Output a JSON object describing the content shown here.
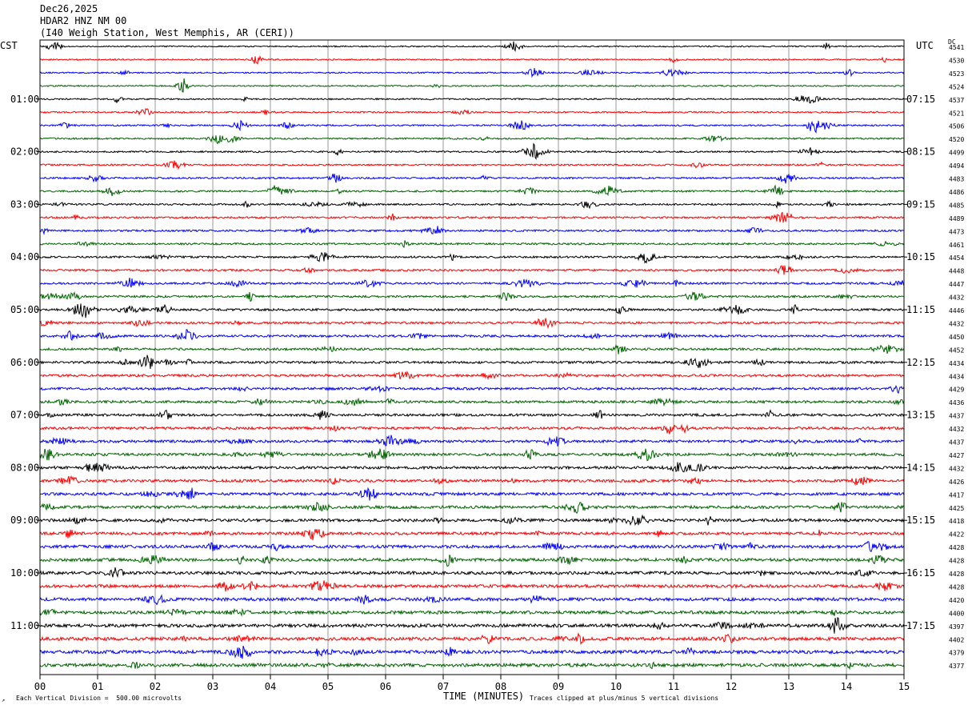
{
  "header": {
    "date": "Dec26,2025",
    "station": "HDAR2 HNZ NM 00",
    "location": "(I40 Weigh Station, West Memphis, AR (CERI))"
  },
  "labels": {
    "left_tz": "CST",
    "right_tz": "UTC",
    "dc": "DC"
  },
  "footer": {
    "scale_text": "Each Vertical Division =  500.00 microvolts",
    "clip_text": "Traces clipped at plus/minus 5 vertical divisions",
    "corner_mark": "↗"
  },
  "chart_data": {
    "type": "line",
    "xlabel": "TIME (MINUTES)",
    "x_ticks": [
      "00",
      "01",
      "02",
      "03",
      "04",
      "05",
      "06",
      "07",
      "08",
      "09",
      "10",
      "11",
      "12",
      "13",
      "14",
      "15"
    ],
    "xlim": [
      0,
      15
    ],
    "trace_count": 48,
    "trace_colors": [
      "#000000",
      "#ff0000",
      "#0000ff",
      "#006400"
    ],
    "left_hour_labels": [
      "01:00",
      "02:00",
      "03:00",
      "04:00",
      "05:00",
      "06:00",
      "07:00",
      "08:00",
      "09:00",
      "10:00",
      "11:00"
    ],
    "right_hour_labels": [
      "07:15",
      "08:15",
      "09:15",
      "10:15",
      "11:15",
      "12:15",
      "13:15",
      "14:15",
      "15:15",
      "16:15",
      "17:15"
    ],
    "hour_label_first_trace": 4,
    "hour_label_every": 4,
    "dc_offsets": [
      4541,
      4530,
      4523,
      4524,
      4537,
      4521,
      4506,
      4520,
      4499,
      4494,
      4483,
      4486,
      4485,
      4489,
      4473,
      4461,
      4454,
      4448,
      4447,
      4432,
      4446,
      4432,
      4450,
      4452,
      4434,
      4434,
      4429,
      4436,
      4437,
      4432,
      4437,
      4427,
      4432,
      4426,
      4417,
      4425,
      4418,
      4422,
      4428,
      4428,
      4428,
      4428,
      4420,
      4400,
      4397,
      4402,
      4379,
      4377
    ]
  }
}
